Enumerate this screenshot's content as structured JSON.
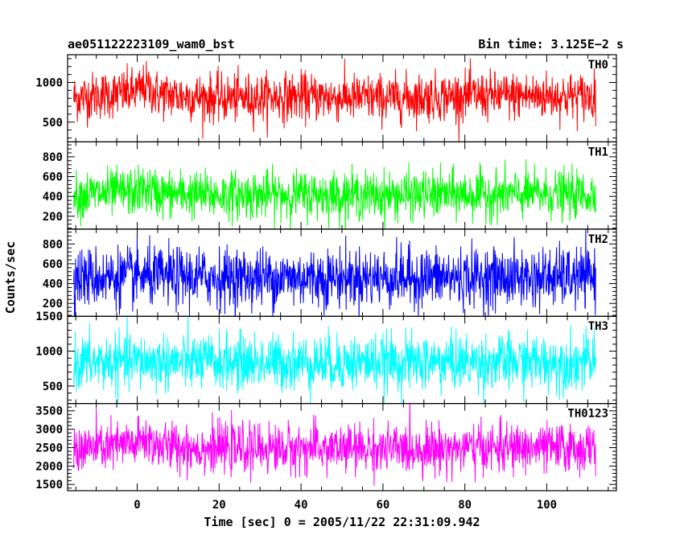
{
  "chart_data": {
    "type": "line",
    "title_left": "ae051122223109_wam0_bst",
    "title_right": "Bin time: 3.125E−2 s",
    "xlabel": "Time [sec] 0 = 2005/11/22 22:31:09.942",
    "ylabel": "Counts/sec",
    "xlim": [
      -17,
      117
    ],
    "x_ticks": [
      0,
      20,
      40,
      60,
      80,
      100
    ],
    "x_tick_labels": [
      "0",
      "20",
      "40",
      "60",
      "80",
      "100"
    ],
    "data_range": [
      -15.5,
      112.0
    ],
    "bin_time": 0.03125,
    "grid": false,
    "legend": "none",
    "panels": [
      {
        "name": "TH0",
        "color": "#ff0000",
        "ylim": [
          250,
          1350
        ],
        "y_ticks": [
          500,
          1000
        ],
        "y_tick_labels": [
          "500",
          "1000"
        ],
        "mean": 820,
        "spread": 150,
        "x": [
          -15,
          0,
          2,
          5,
          20,
          40,
          60,
          80,
          100,
          112
        ],
        "y": [
          810,
          880,
          950,
          850,
          800,
          820,
          800,
          830,
          830,
          820
        ]
      },
      {
        "name": "TH1",
        "color": "#00ff00",
        "ylim": [
          70,
          950
        ],
        "y_ticks": [
          200,
          400,
          600,
          800
        ],
        "y_tick_labels": [
          "200",
          "400",
          "600",
          "800"
        ],
        "mean": 420,
        "spread": 120,
        "x": [
          -15,
          0,
          2,
          5,
          20,
          40,
          60,
          80,
          100,
          112
        ],
        "y": [
          410,
          450,
          480,
          430,
          410,
          420,
          410,
          420,
          420,
          420
        ]
      },
      {
        "name": "TH2",
        "color": "#0000ff",
        "ylim": [
          70,
          950
        ],
        "y_ticks": [
          200,
          400,
          600,
          800
        ],
        "y_tick_labels": [
          "200",
          "400",
          "600",
          "800"
        ],
        "mean": 460,
        "spread": 150,
        "x": [
          -15,
          0,
          20,
          40,
          60,
          80,
          100,
          112
        ],
        "y": [
          460,
          470,
          460,
          460,
          460,
          460,
          460,
          460
        ]
      },
      {
        "name": "TH3",
        "color": "#00ffff",
        "ylim": [
          250,
          1500
        ],
        "y_ticks": [
          500,
          1000,
          1500
        ],
        "y_tick_labels": [
          "500",
          "1000",
          "1500"
        ],
        "mean": 840,
        "spread": 200,
        "x": [
          -15,
          0,
          20,
          40,
          60,
          80,
          100,
          112
        ],
        "y": [
          830,
          850,
          840,
          840,
          840,
          840,
          840,
          840
        ]
      },
      {
        "name": "TH0123",
        "color": "#ff00ff",
        "ylim": [
          1330,
          3700
        ],
        "y_ticks": [
          1500,
          2000,
          2500,
          3000,
          3500
        ],
        "y_tick_labels": [
          "1500",
          "2000",
          "2500",
          "3000",
          "3500"
        ],
        "mean": 2480,
        "spread": 330,
        "x": [
          -15,
          0,
          2,
          5,
          20,
          40,
          60,
          80,
          100,
          112
        ],
        "y": [
          2450,
          2600,
          2750,
          2550,
          2470,
          2480,
          2460,
          2480,
          2490,
          2480
        ]
      }
    ]
  }
}
